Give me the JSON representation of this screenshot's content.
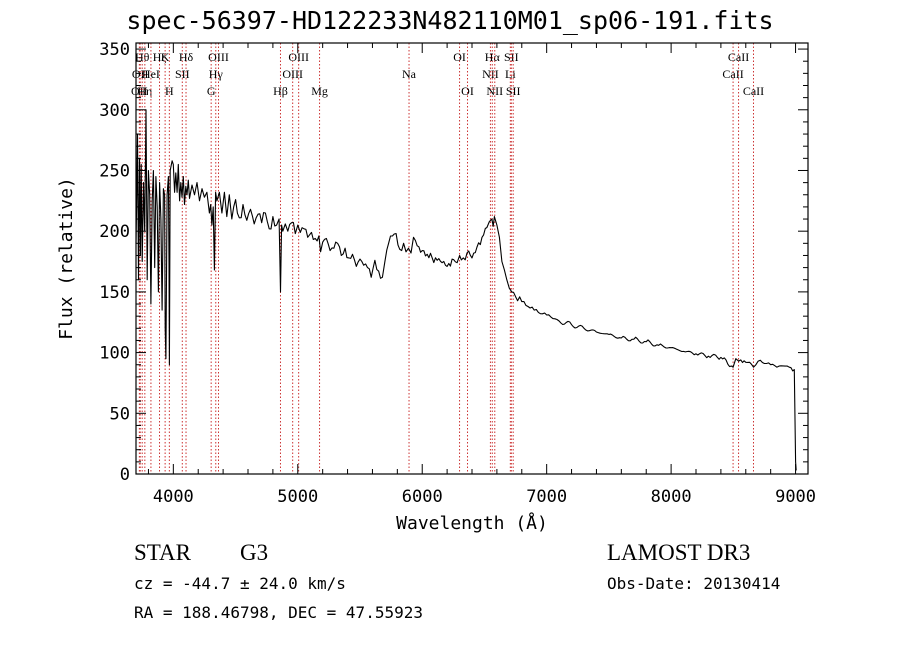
{
  "title": "spec-56397-HD122233N482110M01_sp06-191.fits",
  "info": {
    "class_label": "STAR",
    "subclass": "G3",
    "survey": "LAMOST DR3",
    "cz": "cz = -44.7 ± 24.0 km/s",
    "obs_date": "Obs-Date: 20130414",
    "radec": "RA = 188.46798, DEC =  47.55923"
  },
  "colors": {
    "line": "#000000",
    "marker": "#cc3333",
    "axis": "#000000"
  },
  "chart_data": {
    "type": "line",
    "title": "spec-56397-HD122233N482110M01_sp06-191.fits",
    "xlabel": "Wavelength (Å)",
    "ylabel": "Flux (relative)",
    "xlim": [
      3700,
      9100
    ],
    "ylim": [
      0,
      355
    ],
    "xticks": [
      4000,
      5000,
      6000,
      7000,
      8000,
      9000
    ],
    "yticks": [
      0,
      50,
      100,
      150,
      200,
      250,
      300,
      350
    ],
    "series": [
      {
        "name": "flux",
        "x": [
          3700,
          3705,
          3712,
          3720,
          3728,
          3735,
          3742,
          3750,
          3760,
          3770,
          3780,
          3790,
          3800,
          3810,
          3820,
          3830,
          3840,
          3850,
          3860,
          3870,
          3880,
          3890,
          3900,
          3910,
          3920,
          3930,
          3935,
          3940,
          3950,
          3960,
          3965,
          3968,
          3975,
          3990,
          4000,
          4010,
          4020,
          4030,
          4040,
          4050,
          4060,
          4070,
          4080,
          4090,
          4100,
          4110,
          4120,
          4130,
          4150,
          4170,
          4190,
          4210,
          4230,
          4250,
          4270,
          4290,
          4300,
          4310,
          4320,
          4330,
          4340,
          4350,
          4370,
          4390,
          4410,
          4430,
          4450,
          4470,
          4500,
          4530,
          4560,
          4590,
          4620,
          4650,
          4680,
          4710,
          4740,
          4770,
          4800,
          4830,
          4850,
          4861,
          4870,
          4880,
          4900,
          4920,
          4950,
          4980,
          5000,
          5020,
          5050,
          5080,
          5110,
          5140,
          5170,
          5183,
          5200,
          5230,
          5260,
          5290,
          5320,
          5350,
          5380,
          5410,
          5440,
          5470,
          5500,
          5530,
          5560,
          5590,
          5620,
          5650,
          5680,
          5700,
          5730,
          5760,
          5790,
          5820,
          5850,
          5870,
          5890,
          5910,
          5930,
          5960,
          6000,
          6040,
          6080,
          6120,
          6160,
          6200,
          6240,
          6280,
          6300,
          6330,
          6360,
          6400,
          6440,
          6480,
          6520,
          6540,
          6560,
          6570,
          6580,
          6600,
          6620,
          6640,
          6660,
          6680,
          6700,
          6720,
          6750,
          6800,
          6850,
          6900,
          6950,
          7000,
          7050,
          7100,
          7200,
          7300,
          7400,
          7500,
          7600,
          7700,
          7800,
          7900,
          8000,
          8100,
          8200,
          8300,
          8400,
          8498,
          8520,
          8542,
          8560,
          8600,
          8662,
          8700,
          8750,
          8800,
          8850,
          8900,
          8950,
          8990,
          9000,
          9005
        ],
        "y": [
          190,
          220,
          280,
          160,
          260,
          180,
          255,
          175,
          240,
          200,
          300,
          160,
          250,
          230,
          140,
          225,
          250,
          170,
          245,
          220,
          150,
          240,
          210,
          135,
          235,
          230,
          120,
          95,
          230,
          245,
          175,
          90,
          250,
          258,
          255,
          232,
          248,
          232,
          255,
          225,
          240,
          228,
          245,
          222,
          237,
          230,
          242,
          227,
          238,
          230,
          240,
          225,
          235,
          228,
          232,
          215,
          222,
          205,
          220,
          168,
          232,
          225,
          232,
          215,
          232,
          212,
          230,
          210,
          226,
          211,
          222,
          209,
          218,
          206,
          214,
          207,
          215,
          202,
          212,
          205,
          210,
          150,
          205,
          200,
          206,
          200,
          207,
          198,
          205,
          199,
          202,
          195,
          199,
          194,
          196,
          183,
          191,
          194,
          184,
          186,
          190,
          180,
          186,
          178,
          181,
          171,
          177,
          172,
          170,
          162,
          176,
          167,
          162,
          175,
          190,
          196,
          198,
          185,
          190,
          183,
          186,
          182,
          195,
          188,
          184,
          181,
          178,
          176,
          174,
          171,
          177,
          174,
          180,
          178,
          182,
          178,
          187,
          195,
          203,
          208,
          210,
          204,
          212,
          205,
          195,
          175,
          168,
          160,
          153,
          150,
          146,
          142,
          138,
          135,
          132,
          131,
          128,
          126,
          123,
          120,
          117,
          115,
          112,
          111,
          109,
          106,
          104,
          101,
          99,
          97,
          96,
          88,
          95,
          93,
          94,
          92,
          88,
          93,
          91,
          90,
          88,
          89,
          88,
          86,
          10,
          3
        ]
      }
    ],
    "lines": [
      {
        "wave": 3727,
        "labels": [
          "OII"
        ],
        "row": [
          3
        ]
      },
      {
        "wave": 3734,
        "labels": [
          "OII"
        ],
        "row": [
          2
        ]
      },
      {
        "wave": 3750,
        "labels": [
          "Hθ"
        ],
        "row": [
          1
        ]
      },
      {
        "wave": 3771,
        "labels": [
          "Hη"
        ],
        "row": [
          3
        ]
      },
      {
        "wave": 3820,
        "labels": [
          "HeI"
        ],
        "row": [
          2
        ]
      },
      {
        "wave": 3889,
        "labels": [
          "Hζ"
        ],
        "row": [
          1
        ]
      },
      {
        "wave": 3934,
        "labels": [
          "K"
        ],
        "row": [
          1
        ]
      },
      {
        "wave": 3968,
        "labels": [
          "H"
        ],
        "row": [
          3
        ]
      },
      {
        "wave": 4072,
        "labels": [
          "SII"
        ],
        "row": [
          2
        ]
      },
      {
        "wave": 4102,
        "labels": [
          "Hδ"
        ],
        "row": [
          1
        ]
      },
      {
        "wave": 4304,
        "labels": [
          "G"
        ],
        "row": [
          3
        ]
      },
      {
        "wave": 4341,
        "labels": [
          "Hγ"
        ],
        "row": [
          2
        ]
      },
      {
        "wave": 4363,
        "labels": [
          "OIII"
        ],
        "row": [
          1
        ]
      },
      {
        "wave": 4861,
        "labels": [
          "Hβ"
        ],
        "row": [
          3
        ]
      },
      {
        "wave": 4959,
        "labels": [
          "OIII"
        ],
        "row": [
          2
        ]
      },
      {
        "wave": 5007,
        "labels": [
          "OIII"
        ],
        "row": [
          1
        ]
      },
      {
        "wave": 5175,
        "labels": [
          "Mg"
        ],
        "row": [
          3
        ]
      },
      {
        "wave": 5894,
        "labels": [
          "Na"
        ],
        "row": [
          2
        ]
      },
      {
        "wave": 6300,
        "labels": [
          "OI"
        ],
        "row": [
          1
        ]
      },
      {
        "wave": 6364,
        "labels": [
          "OI"
        ],
        "row": [
          3
        ]
      },
      {
        "wave": 6548,
        "labels": [
          "NII"
        ],
        "row": [
          2
        ]
      },
      {
        "wave": 6563,
        "labels": [
          "Hα"
        ],
        "row": [
          1
        ]
      },
      {
        "wave": 6583,
        "labels": [
          "NII"
        ],
        "row": [
          3
        ]
      },
      {
        "wave": 6708,
        "labels": [
          "Li"
        ],
        "row": [
          2
        ]
      },
      {
        "wave": 6716,
        "labels": [
          "SII"
        ],
        "row": [
          1
        ]
      },
      {
        "wave": 6731,
        "labels": [
          "SII"
        ],
        "row": [
          3
        ]
      },
      {
        "wave": 8498,
        "labels": [
          "CaII"
        ],
        "row": [
          2
        ]
      },
      {
        "wave": 8542,
        "labels": [
          "CaII"
        ],
        "row": [
          1
        ]
      },
      {
        "wave": 8662,
        "labels": [
          "CaII"
        ],
        "row": [
          3
        ]
      }
    ]
  }
}
